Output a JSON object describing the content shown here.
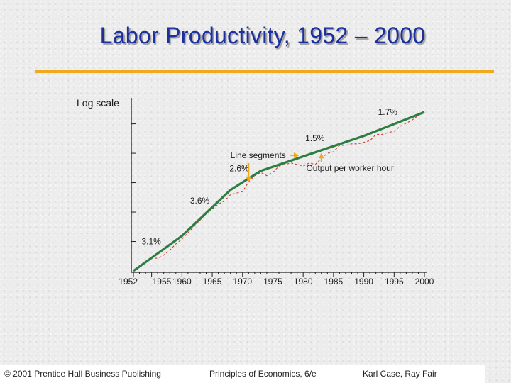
{
  "slide": {
    "title": "Labor Productivity, 1952 – 2000"
  },
  "footer": {
    "left": "© 2001 Prentice Hall Business Publishing",
    "center": "Principles of Economics, 6/e",
    "right": "Karl Case, Ray Fair"
  },
  "colors": {
    "title": "#1c2f9e",
    "rule": "#f2a81d",
    "trend_line": "#2e7d43",
    "actual_line": "#d0392b",
    "annotation_arrow": "#f2a81d"
  },
  "chart_data": {
    "type": "line",
    "title": "Labor Productivity, 1952 – 2000",
    "ylabel": "Log scale",
    "xlabel": "",
    "xlim": [
      1952,
      2000
    ],
    "ylim": [
      0,
      1
    ],
    "y_is_log_scale": true,
    "x_ticks": [
      1952,
      1955,
      1960,
      1965,
      1970,
      1975,
      1980,
      1985,
      1990,
      1995,
      2000
    ],
    "y_tick_count": 5,
    "series": [
      {
        "name": "Line segments",
        "style": "solid",
        "x": [
          1952,
          1960,
          1968,
          1973,
          1983,
          1990,
          2000
        ],
        "y": [
          0.0,
          0.22,
          0.51,
          0.63,
          0.76,
          0.85,
          1.0
        ]
      },
      {
        "name": "Output per worker hour",
        "style": "dashed",
        "x": [
          1952,
          1953,
          1954,
          1955,
          1956,
          1957,
          1958,
          1959,
          1960,
          1961,
          1962,
          1963,
          1964,
          1965,
          1966,
          1967,
          1968,
          1969,
          1970,
          1971,
          1972,
          1973,
          1974,
          1975,
          1976,
          1977,
          1978,
          1979,
          1980,
          1981,
          1982,
          1983,
          1984,
          1985,
          1986,
          1987,
          1988,
          1989,
          1990,
          1991,
          1992,
          1993,
          1994,
          1995,
          1996,
          1997,
          1998,
          1999,
          2000
        ],
        "y": [
          0.0,
          0.03,
          0.05,
          0.08,
          0.08,
          0.1,
          0.13,
          0.17,
          0.2,
          0.24,
          0.28,
          0.32,
          0.36,
          0.39,
          0.42,
          0.44,
          0.48,
          0.49,
          0.5,
          0.56,
          0.6,
          0.62,
          0.6,
          0.62,
          0.66,
          0.67,
          0.68,
          0.67,
          0.66,
          0.68,
          0.67,
          0.71,
          0.74,
          0.75,
          0.79,
          0.79,
          0.8,
          0.8,
          0.81,
          0.82,
          0.86,
          0.86,
          0.87,
          0.88,
          0.91,
          0.93,
          0.95,
          0.98,
          1.01
        ]
      }
    ],
    "segment_rates": [
      {
        "label": "3.1%",
        "x": 1956
      },
      {
        "label": "3.6%",
        "x": 1964
      },
      {
        "label": "2.6%",
        "x": 1970.5
      },
      {
        "label": "1.5%",
        "x": 1983
      },
      {
        "label": "1.7%",
        "x": 1995
      }
    ],
    "annotations": [
      {
        "text": "Line segments",
        "points_to": "Line segments"
      },
      {
        "text": "Output per worker hour",
        "points_to": "Output per worker hour"
      }
    ]
  }
}
